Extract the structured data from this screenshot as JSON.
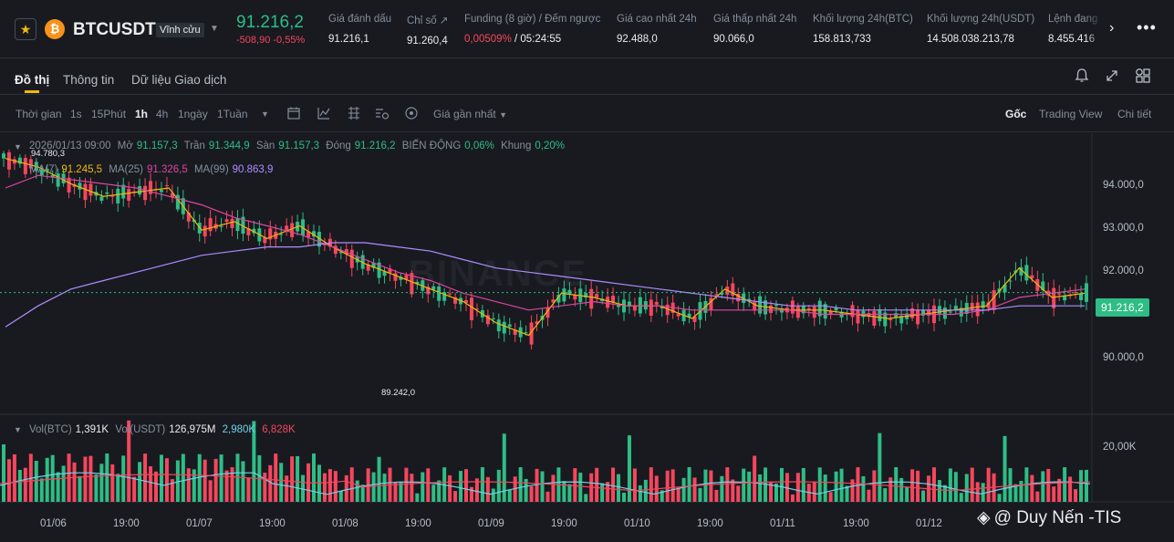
{
  "ticker": {
    "symbol": "BTCUSDT",
    "contract": "Vĩnh cửu",
    "last_price": "91.216,2",
    "change": "-508,90 -0,55%",
    "stats": [
      {
        "label": "Giá đánh dấu",
        "value": "91.216,1"
      },
      {
        "label": "Chỉ số ↗",
        "value": "91.260,4"
      },
      {
        "label": "Funding (8 giờ) / Đếm ngược",
        "value_red": "0,00509%",
        "value": " / 05:24:55"
      },
      {
        "label": "Giá cao nhất 24h",
        "value": "92.488,0"
      },
      {
        "label": "Giá thấp nhất 24h",
        "value": "90.066,0"
      },
      {
        "label": "Khối lượng 24h(BTC)",
        "value": "158.813,733"
      },
      {
        "label": "Khối lượng 24h(USDT)",
        "value": "14.508.038.213,78"
      },
      {
        "label": "Lệnh đang",
        "value": "8.455.416"
      }
    ],
    "next_icon": "chevron-right-icon",
    "more_icon": "more-icon"
  },
  "tabs": {
    "items": [
      "Đồ thị",
      "Thông tin",
      "Dữ liệu Giao dịch"
    ],
    "active": 0,
    "icons": [
      "bell-icon",
      "expand-icon",
      "layout-icon"
    ]
  },
  "toolbar": {
    "time_label": "Thời gian",
    "intervals": [
      "1s",
      "15Phút",
      "1h",
      "4h",
      "1ngày",
      "1Tuần"
    ],
    "active_interval": "1h",
    "tool_icons": [
      "calendar-icon",
      "indicator-icon",
      "drawing-icon",
      "settings-icon",
      "target-icon"
    ],
    "price_type": "Giá gần nhất",
    "views": [
      "Gốc",
      "Trading View",
      "Chi tiết"
    ],
    "active_view": "Gốc"
  },
  "chart": {
    "ohlc_legend": {
      "datetime": "2026/01/13 09:00",
      "open_label": "Mở",
      "open": "91.157,3",
      "high_label": "Trần",
      "high": "91.344,9",
      "low_label": "Sàn",
      "low": "91.157,3",
      "close_label": "Đóng",
      "close": "91.216,2",
      "change_label": "BIẾN ĐỘNG",
      "change": "0,06%",
      "range_label": "Khung",
      "range": "0,20%"
    },
    "ma_legend": {
      "ma7_label": "MA(7)",
      "ma7": "91.245,5",
      "ma25_label": "MA(25)",
      "ma25": "91.326,5",
      "ma99_label": "MA(99)",
      "ma99": "90.863,9"
    },
    "vol_legend": {
      "vol_btc_label": "Vol(BTC)",
      "vol_btc": "1,391K",
      "vol_usdt_label": "Vol(USDT)",
      "vol_usdt": "126,975M",
      "v1": "2,980K",
      "v2": "6,828K"
    },
    "price_ticks": [
      "94.000,0",
      "93.000,0",
      "92.000,0",
      "90.000,0"
    ],
    "volume_tick": "20,00K",
    "time_ticks": [
      "01/06",
      "19:00",
      "01/07",
      "19:00",
      "01/08",
      "19:00",
      "01/09",
      "19:00",
      "01/10",
      "19:00",
      "01/11",
      "19:00",
      "01/12"
    ],
    "current_price": "91.216,2",
    "high_marker": "94.780,3",
    "low_marker": "89.242,0",
    "background_watermark": "BINANCE",
    "watermark": "@ Duy Nến -TIS",
    "colors": {
      "up": "#2ebd85",
      "down": "#f6465d",
      "ma7": "#f0b90b",
      "ma25": "#e045a0",
      "ma99": "#b18cff"
    }
  },
  "chart_data": {
    "type": "line",
    "title": "",
    "xlabel": "",
    "ylabel": "",
    "ylim": [
      88500,
      95000
    ],
    "x": [
      0,
      6,
      12,
      18,
      24,
      30,
      36,
      42,
      48,
      54,
      60,
      66,
      72,
      78,
      84,
      90,
      96,
      102,
      108,
      114,
      120,
      126,
      132,
      138,
      144,
      150,
      156,
      162,
      168,
      174,
      180,
      186,
      192,
      198
    ],
    "series": [
      {
        "name": "MA(7)",
        "values": [
          94400,
          94200,
          93800,
          93500,
          93600,
          93700,
          92700,
          92900,
          92500,
          92800,
          92300,
          91900,
          91600,
          91300,
          91000,
          90500,
          90200,
          91200,
          91100,
          90900,
          90900,
          90600,
          91300,
          90900,
          90800,
          90800,
          90700,
          90600,
          90700,
          90800,
          90900,
          91800,
          91100,
          91200
        ]
      },
      {
        "name": "MA(25)",
        "values": [
          93700,
          94000,
          93900,
          93800,
          93700,
          93500,
          93300,
          93000,
          92800,
          92600,
          92300,
          92000,
          91700,
          91500,
          91200,
          91000,
          90800,
          90900,
          91000,
          90900,
          90900,
          90800,
          90800,
          90800,
          90800,
          90700,
          90700,
          90700,
          90700,
          90700,
          90800,
          91100,
          91200,
          91300
        ]
      },
      {
        "name": "MA(99)",
        "values": [
          90400,
          90900,
          91300,
          91500,
          91700,
          91900,
          92100,
          92200,
          92300,
          92300,
          92400,
          92400,
          92300,
          92200,
          92000,
          91800,
          91700,
          91600,
          91500,
          91400,
          91300,
          91200,
          91100,
          91000,
          90900,
          90900,
          90800,
          90800,
          90800,
          90800,
          90800,
          90900,
          90900,
          90900
        ]
      }
    ]
  }
}
